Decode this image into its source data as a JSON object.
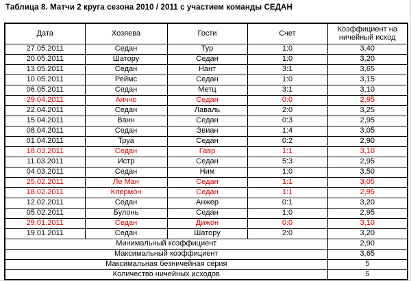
{
  "title": "Таблица 8. Матчи 2 круга сезона 2010 / 2011 с участием команды СЕДАН",
  "colors": {
    "draw_row_text": "#dd0000",
    "normal_text": "#000000",
    "grid_border": "#000000"
  },
  "table": {
    "headers": [
      "Дата",
      "Хозяева",
      "Гости",
      "Счет",
      "Коэффициент на ничейный исход"
    ],
    "rows": [
      {
        "date": "27.05.2011",
        "home": "Седан",
        "away": "Тур",
        "score": "1:0",
        "coef": "3,40",
        "draw": false
      },
      {
        "date": "20.05.2011",
        "home": "Шатору",
        "away": "Седан",
        "score": "1:0",
        "coef": "3,20",
        "draw": false
      },
      {
        "date": "13.05.2011",
        "home": "Седан",
        "away": "Нант",
        "score": "3:1",
        "coef": "3,65",
        "draw": false
      },
      {
        "date": "10.05.2011",
        "home": "Реймс",
        "away": "Седан",
        "score": "1:0",
        "coef": "3,15",
        "draw": false
      },
      {
        "date": "06.05.2011",
        "home": "Седан",
        "away": "Метц",
        "score": "3:1",
        "coef": "3,10",
        "draw": false
      },
      {
        "date": "29.04.2011",
        "home": "Аяччо",
        "away": "Седан",
        "score": "0:0",
        "coef": "2,95",
        "draw": true
      },
      {
        "date": "22.04.2011",
        "home": "Седан",
        "away": "Лаваль",
        "score": "2:0",
        "coef": "3,25",
        "draw": false
      },
      {
        "date": "15.04.2011",
        "home": "Ванн",
        "away": "Седан",
        "score": "0:3",
        "coef": "2,95",
        "draw": false
      },
      {
        "date": "08.04.2011",
        "home": "Седан",
        "away": "Эвиан",
        "score": "1:4",
        "coef": "3,05",
        "draw": false
      },
      {
        "date": "01.04.2011",
        "home": "Труа",
        "away": "Седан",
        "score": "0:2",
        "coef": "2,90",
        "draw": false
      },
      {
        "date": "18.03.2011",
        "home": "Седан",
        "away": "Гавр",
        "score": "1:1",
        "coef": "3,10",
        "draw": true
      },
      {
        "date": "11.03.2011",
        "home": "Истр",
        "away": "Седан",
        "score": "5:3",
        "coef": "2,95",
        "draw": false
      },
      {
        "date": "04.03.2011",
        "home": "Седан",
        "away": "Ним",
        "score": "1:0",
        "coef": "3,50",
        "draw": false
      },
      {
        "date": "25.02.2011",
        "home": "Ле Ман",
        "away": "Седан",
        "score": "1:1",
        "coef": "3,05",
        "draw": true
      },
      {
        "date": "18.02.2011",
        "home": "Клермон",
        "away": "Седан",
        "score": "1:1",
        "coef": "2,95",
        "draw": true
      },
      {
        "date": "12.02.2011",
        "home": "Седан",
        "away": "Анжер",
        "score": "0:1",
        "coef": "3,20",
        "draw": false
      },
      {
        "date": "05.02.2011",
        "home": "Булонь",
        "away": "Седан",
        "score": "1:0",
        "coef": "2,95",
        "draw": false
      },
      {
        "date": "29.01.2011",
        "home": "Седан",
        "away": "Дижон",
        "score": "0:0",
        "coef": "3,10",
        "draw": true
      },
      {
        "date": "19.01.2011",
        "home": "Седан",
        "away": "Шатору",
        "score": "2:0",
        "coef": "3,20",
        "draw": false
      }
    ],
    "summary": [
      {
        "label": "Минимальный коэффициент",
        "value": "2,90"
      },
      {
        "label": "Максимальный коэффициент",
        "value": "3,65"
      },
      {
        "label": "Максимальная безничейная серия",
        "value": "5"
      },
      {
        "label": "Количество ничейных исходов",
        "value": "5"
      }
    ]
  }
}
